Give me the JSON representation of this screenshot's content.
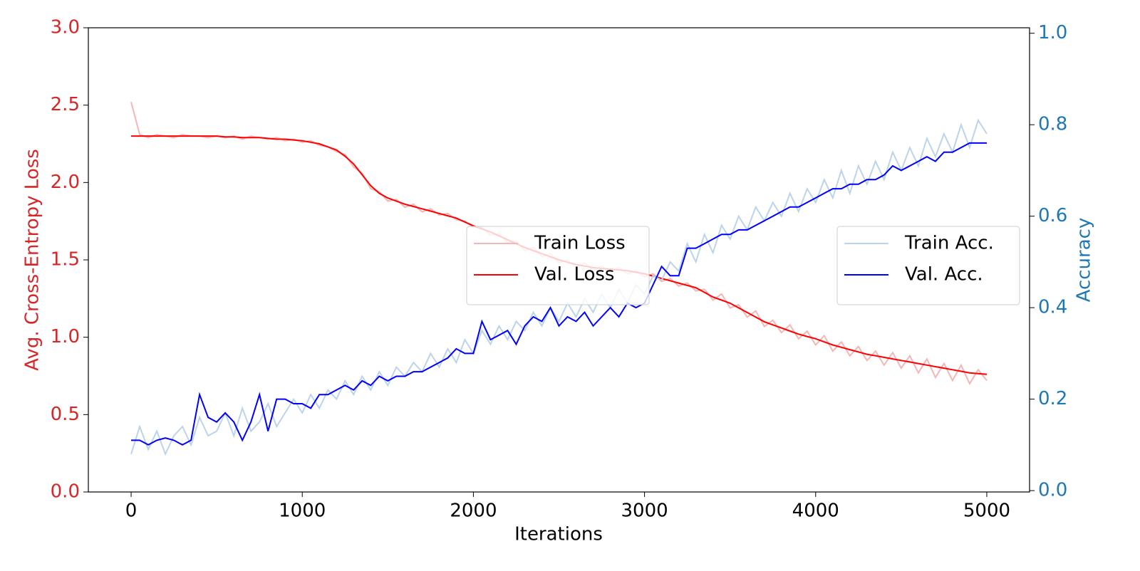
{
  "chart_data": {
    "type": "line",
    "xlabel": "Iterations",
    "ylabel": "Avg. Cross-Entropy Loss",
    "y2label": "Accuracy",
    "ylabel_color": "#d62728",
    "y2label_color": "#1f77b4",
    "xlim": [
      -250,
      5250
    ],
    "ylim": [
      0,
      3
    ],
    "y2lim": [
      -0.003,
      1.012
    ],
    "xticks": [
      0,
      1000,
      2000,
      3000,
      4000,
      5000
    ],
    "yticks": [
      {
        "value": 0,
        "label": "0.0"
      },
      {
        "value": 0.5,
        "label": "0.5"
      },
      {
        "value": 1,
        "label": "1.0"
      },
      {
        "value": 1.5,
        "label": "1.5"
      },
      {
        "value": 2,
        "label": "2.0"
      },
      {
        "value": 2.5,
        "label": "2.5"
      },
      {
        "value": 3,
        "label": "3.0"
      }
    ],
    "y2ticks": [
      {
        "value": 0,
        "label": "0.0"
      },
      {
        "value": 0.2,
        "label": "0.2"
      },
      {
        "value": 0.4,
        "label": "0.4"
      },
      {
        "value": 0.6,
        "label": "0.6"
      },
      {
        "value": 0.8,
        "label": "0.8"
      },
      {
        "value": 1,
        "label": "1.0"
      }
    ],
    "legend": {
      "y": "center",
      "y2": "center right"
    },
    "x": [
      0,
      50,
      100,
      150,
      200,
      250,
      300,
      350,
      400,
      450,
      500,
      550,
      600,
      650,
      700,
      750,
      800,
      850,
      900,
      950,
      1000,
      1050,
      1100,
      1150,
      1200,
      1250,
      1300,
      1350,
      1400,
      1450,
      1500,
      1550,
      1600,
      1650,
      1700,
      1750,
      1800,
      1850,
      1900,
      1950,
      2000,
      2050,
      2100,
      2150,
      2200,
      2250,
      2300,
      2350,
      2400,
      2450,
      2500,
      2550,
      2600,
      2650,
      2700,
      2750,
      2800,
      2850,
      2900,
      2950,
      3000,
      3050,
      3100,
      3150,
      3200,
      3250,
      3300,
      3350,
      3400,
      3450,
      3500,
      3550,
      3600,
      3650,
      3700,
      3750,
      3800,
      3850,
      3900,
      3950,
      4000,
      4050,
      4100,
      4150,
      4200,
      4250,
      4300,
      4350,
      4400,
      4450,
      4500,
      4550,
      4600,
      4650,
      4700,
      4750,
      4800,
      4850,
      4900,
      4950,
      5000
    ],
    "series": [
      {
        "name": "Train Loss",
        "color": "#f4b6b6",
        "axis": "y",
        "values": [
          2.52,
          2.31,
          2.29,
          2.31,
          2.3,
          2.29,
          2.31,
          2.3,
          2.3,
          2.29,
          2.3,
          2.29,
          2.3,
          2.28,
          2.3,
          2.29,
          2.28,
          2.29,
          2.27,
          2.28,
          2.26,
          2.27,
          2.24,
          2.23,
          2.2,
          2.18,
          2.1,
          2.06,
          1.96,
          1.94,
          1.88,
          1.89,
          1.84,
          1.86,
          1.81,
          1.83,
          1.79,
          1.8,
          1.76,
          1.75,
          1.71,
          1.71,
          1.66,
          1.67,
          1.61,
          1.62,
          1.56,
          1.58,
          1.52,
          1.54,
          1.48,
          1.5,
          1.45,
          1.48,
          1.43,
          1.46,
          1.42,
          1.45,
          1.41,
          1.43,
          1.39,
          1.41,
          1.36,
          1.38,
          1.33,
          1.35,
          1.3,
          1.31,
          1.24,
          1.28,
          1.19,
          1.21,
          1.13,
          1.17,
          1.07,
          1.11,
          1.03,
          1.08,
          0.99,
          1.04,
          0.95,
          1.01,
          0.91,
          0.97,
          0.88,
          0.94,
          0.85,
          0.91,
          0.82,
          0.9,
          0.8,
          0.88,
          0.77,
          0.86,
          0.74,
          0.83,
          0.72,
          0.82,
          0.7,
          0.79,
          0.72
        ]
      },
      {
        "name": "Val. Loss",
        "color": "#ff0000",
        "axis": "y",
        "values": [
          2.3,
          2.3,
          2.3,
          2.3,
          2.3,
          2.3,
          2.3,
          2.3,
          2.3,
          2.3,
          2.3,
          2.295,
          2.295,
          2.29,
          2.29,
          2.29,
          2.285,
          2.28,
          2.28,
          2.275,
          2.27,
          2.26,
          2.25,
          2.23,
          2.21,
          2.17,
          2.12,
          2.05,
          1.98,
          1.93,
          1.9,
          1.88,
          1.86,
          1.845,
          1.83,
          1.815,
          1.8,
          1.785,
          1.77,
          1.745,
          1.72,
          1.7,
          1.68,
          1.655,
          1.63,
          1.605,
          1.58,
          1.56,
          1.54,
          1.52,
          1.5,
          1.485,
          1.47,
          1.46,
          1.45,
          1.445,
          1.44,
          1.435,
          1.43,
          1.42,
          1.41,
          1.395,
          1.38,
          1.365,
          1.35,
          1.335,
          1.32,
          1.29,
          1.26,
          1.24,
          1.22,
          1.19,
          1.16,
          1.13,
          1.1,
          1.08,
          1.06,
          1.04,
          1.02,
          1.005,
          0.99,
          0.97,
          0.95,
          0.935,
          0.92,
          0.905,
          0.89,
          0.88,
          0.87,
          0.86,
          0.85,
          0.84,
          0.83,
          0.82,
          0.81,
          0.8,
          0.79,
          0.78,
          0.77,
          0.765,
          0.76
        ]
      },
      {
        "name": "Train Acc.",
        "color": "#bcd4ea",
        "axis": "y2",
        "values": [
          0.08,
          0.14,
          0.09,
          0.13,
          0.08,
          0.12,
          0.14,
          0.1,
          0.16,
          0.12,
          0.13,
          0.17,
          0.12,
          0.18,
          0.13,
          0.15,
          0.19,
          0.14,
          0.17,
          0.2,
          0.17,
          0.21,
          0.18,
          0.22,
          0.2,
          0.24,
          0.21,
          0.25,
          0.22,
          0.26,
          0.23,
          0.27,
          0.25,
          0.28,
          0.26,
          0.3,
          0.27,
          0.31,
          0.28,
          0.33,
          0.3,
          0.35,
          0.32,
          0.36,
          0.33,
          0.37,
          0.35,
          0.39,
          0.36,
          0.4,
          0.37,
          0.41,
          0.38,
          0.42,
          0.39,
          0.43,
          0.4,
          0.44,
          0.41,
          0.45,
          0.43,
          0.47,
          0.46,
          0.5,
          0.48,
          0.54,
          0.5,
          0.56,
          0.52,
          0.58,
          0.55,
          0.6,
          0.57,
          0.62,
          0.59,
          0.63,
          0.6,
          0.65,
          0.61,
          0.66,
          0.63,
          0.68,
          0.64,
          0.7,
          0.65,
          0.71,
          0.67,
          0.72,
          0.68,
          0.74,
          0.7,
          0.75,
          0.71,
          0.77,
          0.73,
          0.78,
          0.74,
          0.8,
          0.75,
          0.81,
          0.78
        ]
      },
      {
        "name": "Val. Acc.",
        "color": "#0000ff",
        "axis": "y2",
        "values": [
          0.11,
          0.11,
          0.1,
          0.11,
          0.115,
          0.11,
          0.1,
          0.11,
          0.21,
          0.16,
          0.15,
          0.17,
          0.15,
          0.11,
          0.15,
          0.21,
          0.13,
          0.2,
          0.2,
          0.19,
          0.19,
          0.18,
          0.21,
          0.21,
          0.22,
          0.23,
          0.22,
          0.24,
          0.23,
          0.25,
          0.24,
          0.25,
          0.25,
          0.26,
          0.26,
          0.27,
          0.28,
          0.29,
          0.31,
          0.3,
          0.3,
          0.37,
          0.33,
          0.34,
          0.35,
          0.32,
          0.36,
          0.38,
          0.37,
          0.4,
          0.36,
          0.38,
          0.37,
          0.39,
          0.36,
          0.38,
          0.4,
          0.38,
          0.41,
          0.4,
          0.41,
          0.45,
          0.49,
          0.47,
          0.47,
          0.53,
          0.53,
          0.54,
          0.55,
          0.56,
          0.56,
          0.57,
          0.57,
          0.58,
          0.59,
          0.6,
          0.61,
          0.62,
          0.62,
          0.63,
          0.64,
          0.65,
          0.66,
          0.66,
          0.67,
          0.67,
          0.68,
          0.68,
          0.69,
          0.71,
          0.7,
          0.71,
          0.72,
          0.73,
          0.72,
          0.74,
          0.74,
          0.75,
          0.76,
          0.76,
          0.76
        ]
      }
    ]
  }
}
